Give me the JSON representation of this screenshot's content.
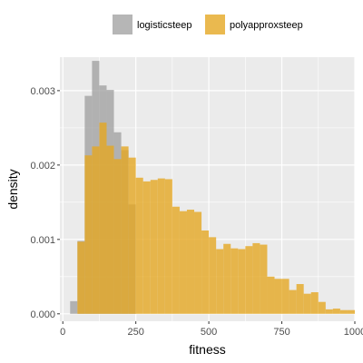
{
  "chart_data": {
    "type": "bar",
    "subtype": "overlaid-histogram",
    "xlabel": "fitness",
    "ylabel": "density",
    "xlim": [
      -10,
      1000
    ],
    "ylim": [
      -0.0001,
      0.00345
    ],
    "x_ticks": [
      0,
      250,
      500,
      750,
      1000
    ],
    "x_tick_labels": [
      "0",
      "250",
      "500",
      "750",
      "1000"
    ],
    "y_ticks": [
      0,
      0.001,
      0.002,
      0.003
    ],
    "y_tick_labels": [
      "0.000",
      "0.001",
      "0.002",
      "0.003"
    ],
    "grid": true,
    "legend_position": "top",
    "bin_width": 25,
    "bin_starts": [
      0,
      25,
      50,
      75,
      100,
      125,
      150,
      175,
      200,
      225,
      250,
      275,
      300,
      325,
      350,
      375,
      400,
      425,
      450,
      475,
      500,
      525,
      550,
      575,
      600,
      625,
      650,
      675,
      700,
      725,
      750,
      775,
      800,
      825,
      850,
      875,
      900,
      925,
      950,
      975
    ],
    "series": [
      {
        "name": "logisticsteep",
        "color": "#9e9e9e",
        "opacity": 0.75,
        "values": [
          0,
          0.00017,
          0.00098,
          0.00293,
          0.0034,
          0.00307,
          0.00301,
          0.00244,
          0.0022,
          0.00147,
          0,
          0,
          0,
          0,
          0,
          0,
          0,
          0,
          0,
          0,
          0,
          0,
          0,
          0,
          0,
          0,
          0,
          0,
          0,
          0,
          0,
          0,
          0,
          0,
          0,
          0,
          0,
          0,
          0,
          0
        ]
      },
      {
        "name": "polyapproxsteep",
        "color": "#e5a823",
        "opacity": 0.8,
        "values": [
          0,
          0,
          0.00097,
          0.00213,
          0.00225,
          0.00257,
          0.00226,
          0.00208,
          0.00225,
          0.0021,
          0.00183,
          0.00178,
          0.0018,
          0.00182,
          0.00181,
          0.00144,
          0.00138,
          0.0014,
          0.00137,
          0.00112,
          0.00103,
          0.00087,
          0.00094,
          0.00088,
          0.00087,
          0.00091,
          0.00095,
          0.00093,
          0.0005,
          0.00047,
          0.00047,
          0.00032,
          0.0004,
          0.00027,
          0.00029,
          0.00016,
          6e-05,
          7e-05,
          5e-05,
          5e-05
        ]
      }
    ]
  }
}
